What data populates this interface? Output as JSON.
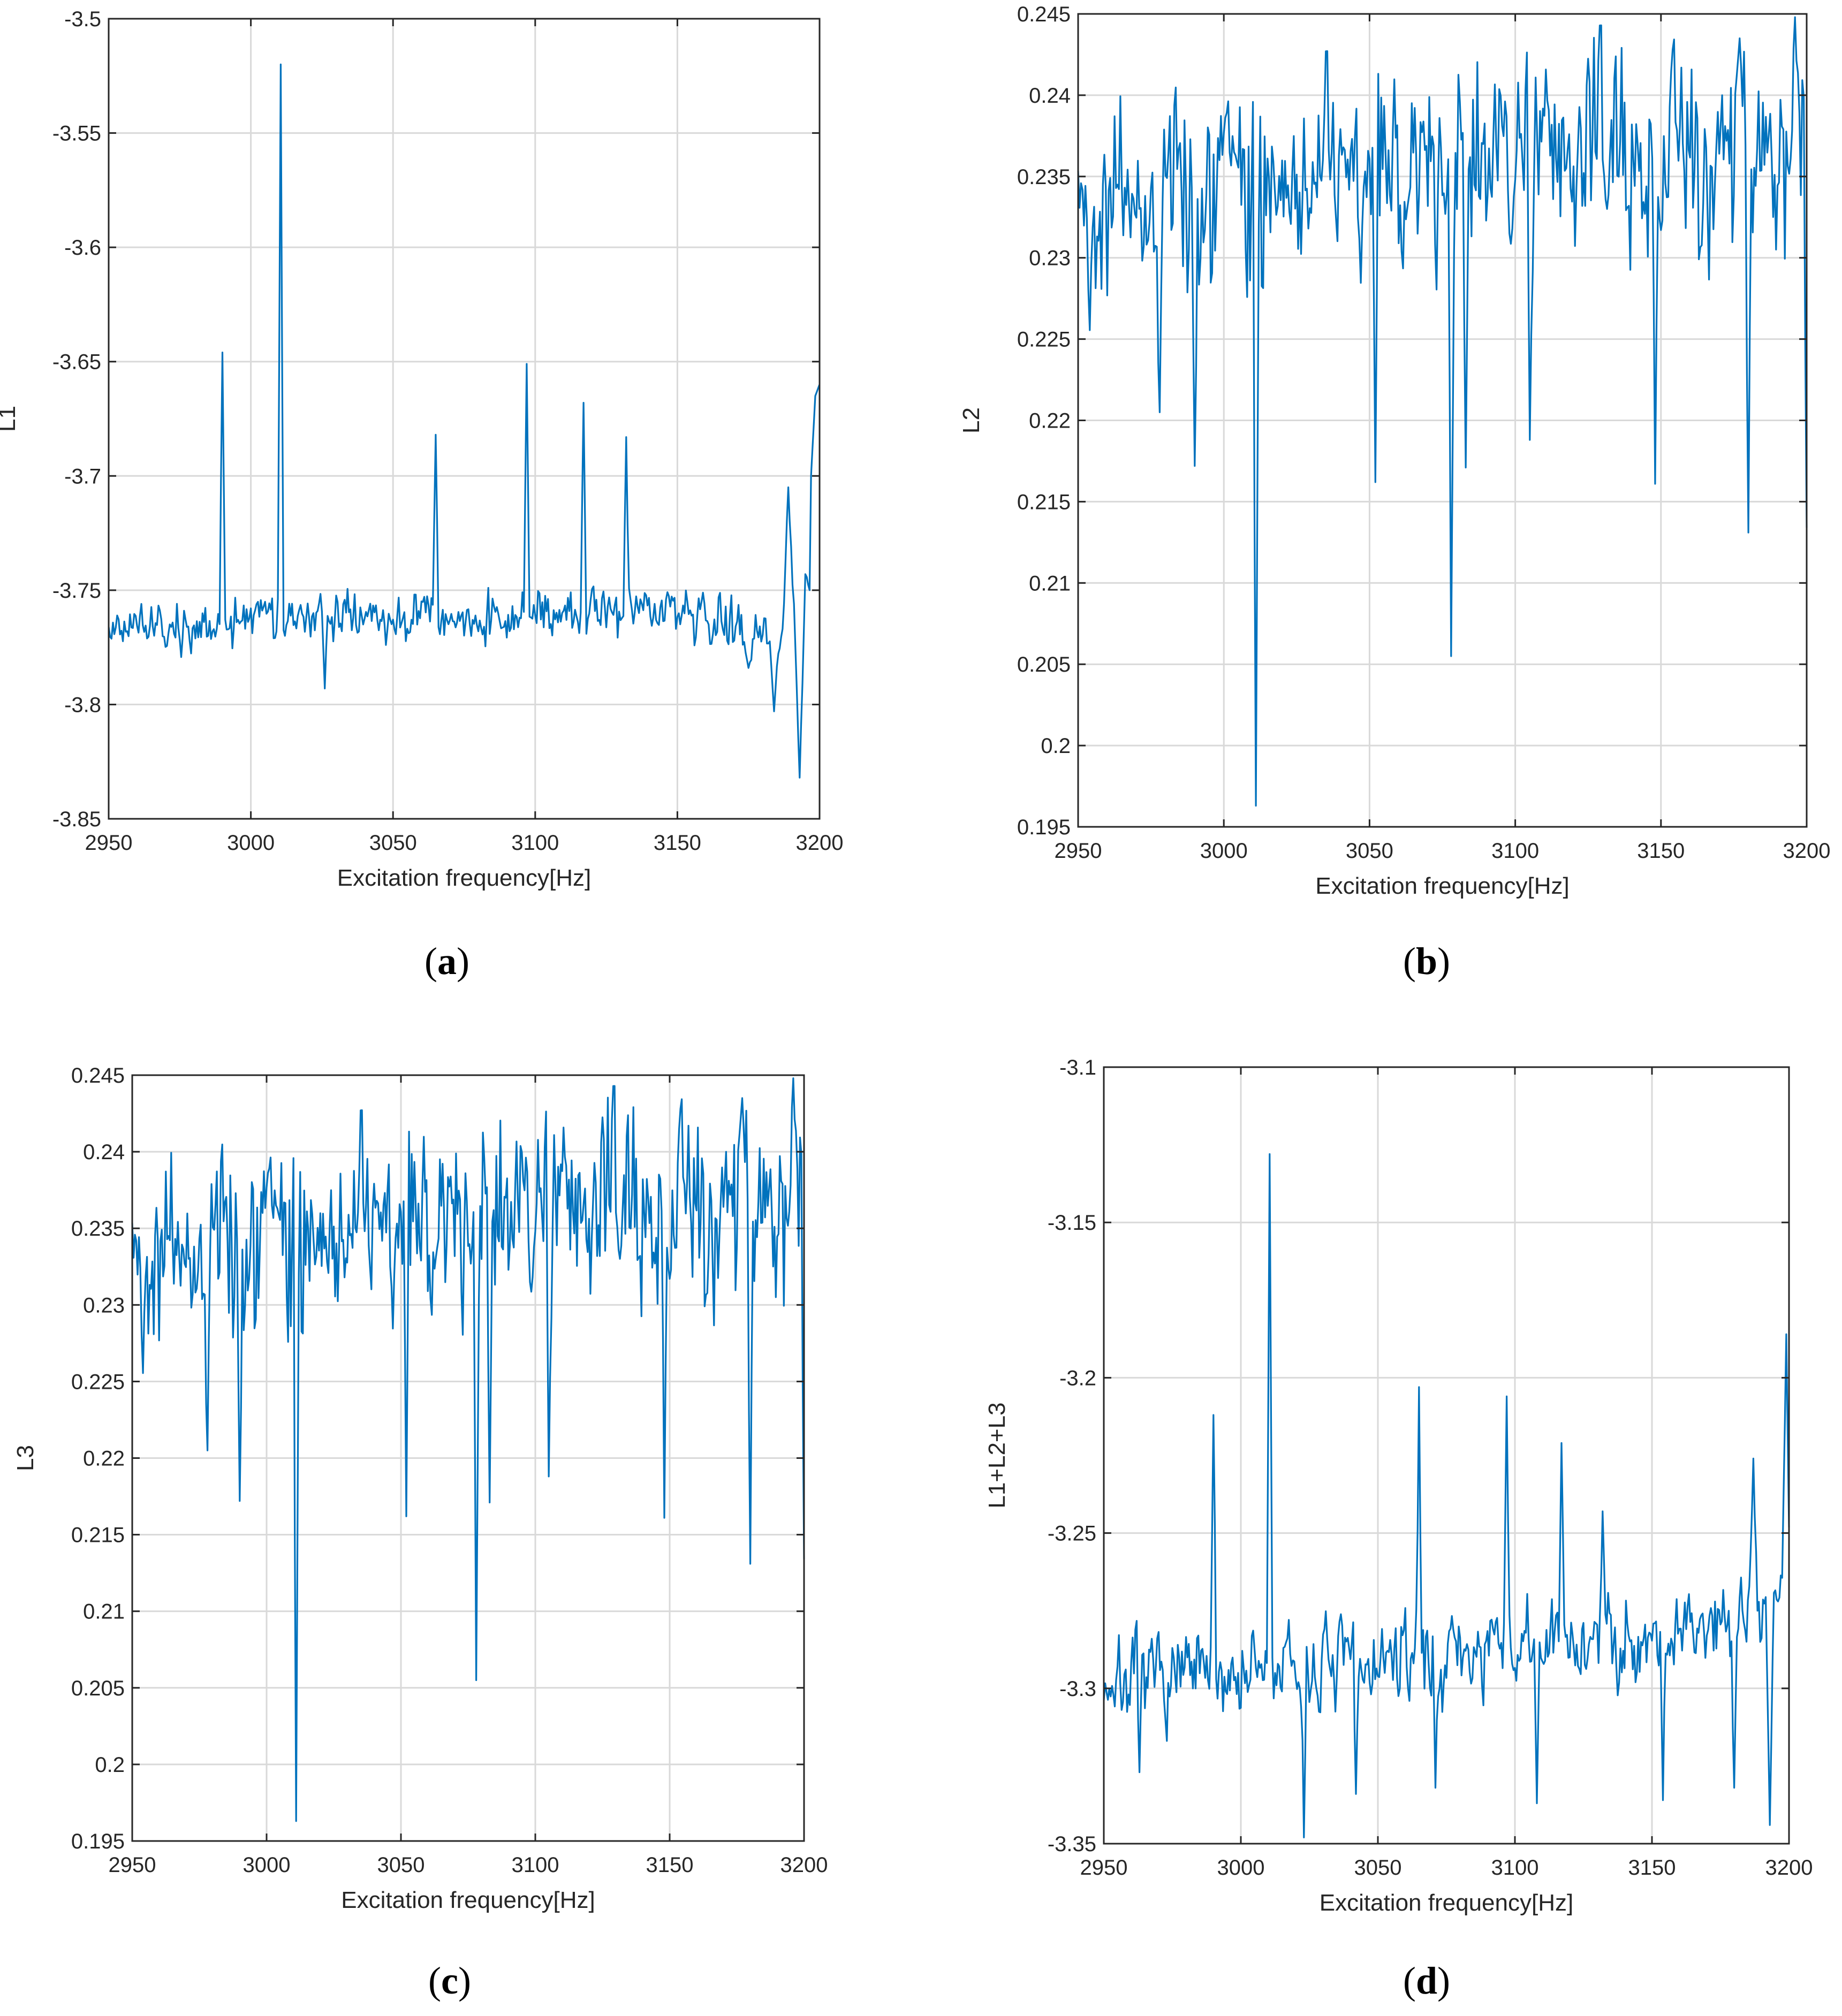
{
  "figure": {
    "line_color": "#0072BD",
    "grid_color": "#d9d9d9",
    "axis_color": "#262626"
  },
  "chart_data": [
    {
      "type": "line",
      "caption_letter": "a",
      "xlabel": "Excitation frequency[Hz]",
      "ylabel": "L1",
      "xlim": [
        2950,
        3200
      ],
      "ylim": [
        -3.85,
        -3.5
      ],
      "xticks": [
        2950,
        3000,
        3050,
        3100,
        3150,
        3200
      ],
      "xtick_labels": [
        "2950",
        "3000",
        "3050",
        "3100",
        "3150",
        "3200"
      ],
      "yticks": [
        -3.85,
        -3.8,
        -3.75,
        -3.7,
        -3.65,
        -3.6,
        -3.55,
        -3.5
      ],
      "ytick_labels": [
        "-3.85",
        "-3.8",
        "-3.75",
        "-3.7",
        "-3.65",
        "-3.6",
        "-3.55",
        "-3.5"
      ],
      "grid": true,
      "x_step": 0.5,
      "signal": {
        "baseline": [
          [
            2950,
            -3.765
          ],
          [
            3060,
            -3.763
          ],
          [
            3120,
            -3.758
          ],
          [
            3150,
            -3.76
          ],
          [
            3170,
            -3.765
          ],
          [
            3185,
            -3.77
          ],
          [
            3200,
            -3.74
          ]
        ],
        "noise": 0.008,
        "noise_max": 0.026,
        "seed": 17,
        "spikes": [
          [
            2990,
            -3.646,
            0.5
          ],
          [
            3010.5,
            -3.52,
            0.5
          ],
          [
            3065,
            -3.682,
            0.6
          ],
          [
            3097,
            -3.651,
            0.5
          ],
          [
            3117,
            -3.668,
            0.5
          ],
          [
            3132,
            -3.683,
            0.5
          ],
          [
            3189,
            -3.705,
            1.5
          ]
        ],
        "dips": [
          [
            3193,
            -3.832,
            1.5
          ],
          [
            3184,
            -3.803,
            1.0
          ],
          [
            3175,
            -3.784,
            2.0
          ],
          [
            3026,
            -3.793,
            0.5
          ]
        ],
        "end": [
          [
            3197,
            -3.7
          ],
          [
            3198.5,
            -3.665
          ],
          [
            3200,
            -3.66
          ]
        ]
      }
    },
    {
      "type": "line",
      "caption_letter": "b",
      "xlabel": "Excitation frequency[Hz]",
      "ylabel": "L2",
      "xlim": [
        2950,
        3200
      ],
      "ylim": [
        0.195,
        0.245
      ],
      "xticks": [
        2950,
        3000,
        3050,
        3100,
        3150,
        3200
      ],
      "xtick_labels": [
        "2950",
        "3000",
        "3050",
        "3100",
        "3150",
        "3200"
      ],
      "yticks": [
        0.195,
        0.2,
        0.205,
        0.21,
        0.215,
        0.22,
        0.225,
        0.23,
        0.235,
        0.24,
        0.245
      ],
      "ytick_labels": [
        "0.195",
        "0.2",
        "0.205",
        "0.21",
        "0.215",
        "0.22",
        "0.225",
        "0.23",
        "0.235",
        "0.24",
        "0.245"
      ],
      "grid": true,
      "x_step": 0.5,
      "signal": {
        "baseline": [
          [
            2950,
            0.233
          ],
          [
            3000,
            0.234
          ],
          [
            3100,
            0.236
          ],
          [
            3200,
            0.237
          ]
        ],
        "noise": 0.0045,
        "noise_max": 0.008,
        "seed": 42,
        "spikes": [
          [
            3196,
            0.2448,
            1.0
          ],
          [
            3154,
            0.2428,
            1.0
          ],
          [
            3177,
            0.2435,
            1.0
          ]
        ],
        "dips": [
          [
            3011,
            0.1963,
            0.5
          ],
          [
            3078,
            0.2055,
            0.5
          ],
          [
            3180,
            0.2131,
            0.5
          ],
          [
            3148,
            0.2161,
            0.5
          ],
          [
            3052,
            0.2162,
            0.5
          ],
          [
            2990,
            0.2172,
            0.5
          ],
          [
            3083,
            0.2171,
            0.5
          ],
          [
            3200,
            0.2134,
            0.5
          ],
          [
            2978,
            0.2205,
            0.5
          ],
          [
            3105,
            0.2188,
            0.5
          ]
        ]
      }
    },
    {
      "type": "line",
      "caption_letter": "c",
      "xlabel": "Excitation frequency[Hz]",
      "ylabel": "L3",
      "xlim": [
        2950,
        3200
      ],
      "ylim": [
        0.195,
        0.245
      ],
      "xticks": [
        2950,
        3000,
        3050,
        3100,
        3150,
        3200
      ],
      "xtick_labels": [
        "2950",
        "3000",
        "3050",
        "3100",
        "3150",
        "3200"
      ],
      "yticks": [
        0.195,
        0.2,
        0.205,
        0.21,
        0.215,
        0.22,
        0.225,
        0.23,
        0.235,
        0.24,
        0.245
      ],
      "ytick_labels": [
        "0.195",
        "0.2",
        "0.205",
        "0.21",
        "0.215",
        "0.22",
        "0.225",
        "0.23",
        "0.235",
        "0.24",
        "0.245"
      ],
      "grid": true,
      "x_step": 0.5,
      "signal": {
        "baseline": [
          [
            2950,
            0.233
          ],
          [
            3000,
            0.234
          ],
          [
            3100,
            0.236
          ],
          [
            3200,
            0.237
          ]
        ],
        "noise": 0.0045,
        "noise_max": 0.008,
        "seed": 42,
        "spikes": [
          [
            3196,
            0.2448,
            1.0
          ],
          [
            3154,
            0.2428,
            1.0
          ],
          [
            3177,
            0.2435,
            1.0
          ]
        ],
        "dips": [
          [
            3011,
            0.1963,
            0.5
          ],
          [
            3078,
            0.2055,
            0.5
          ],
          [
            3180,
            0.2131,
            0.5
          ],
          [
            3148,
            0.2161,
            0.5
          ],
          [
            3052,
            0.2162,
            0.5
          ],
          [
            2990,
            0.2172,
            0.5
          ],
          [
            3083,
            0.2171,
            0.5
          ],
          [
            3200,
            0.2134,
            0.5
          ],
          [
            2978,
            0.2205,
            0.5
          ],
          [
            3105,
            0.2188,
            0.5
          ]
        ]
      }
    },
    {
      "type": "line",
      "caption_letter": "d",
      "xlabel": "Excitation frequency[Hz]",
      "ylabel": "L1+L2+L3",
      "xlim": [
        2950,
        3200
      ],
      "ylim": [
        -3.35,
        -3.1
      ],
      "xticks": [
        2950,
        3000,
        3050,
        3100,
        3150,
        3200
      ],
      "xtick_labels": [
        "2950",
        "3000",
        "3050",
        "3100",
        "3150",
        "3200"
      ],
      "yticks": [
        -3.35,
        -3.3,
        -3.25,
        -3.2,
        -3.15,
        -3.1
      ],
      "ytick_labels": [
        "-3.35",
        "-3.3",
        "-3.25",
        "-3.2",
        "-3.15",
        "-3.1"
      ],
      "grid": true,
      "x_step": 0.5,
      "signal": {
        "baseline": [
          [
            2950,
            -3.298
          ],
          [
            3050,
            -3.292
          ],
          [
            3120,
            -3.285
          ],
          [
            3160,
            -3.282
          ],
          [
            3200,
            -3.27
          ]
        ],
        "noise": 0.01,
        "noise_max": 0.03,
        "seed": 7,
        "spikes": [
          [
            2990,
            -3.212,
            0.5
          ],
          [
            3010.5,
            -3.128,
            0.5
          ],
          [
            3065,
            -3.203,
            0.5
          ],
          [
            3097,
            -3.206,
            0.5
          ],
          [
            3117,
            -3.221,
            0.5
          ],
          [
            3132,
            -3.243,
            0.5
          ],
          [
            3187,
            -3.226,
            1.0
          ],
          [
            3199,
            -3.186,
            1.0
          ]
        ],
        "dips": [
          [
            3023,
            -3.348,
            0.5
          ],
          [
            3193,
            -3.344,
            1.0
          ],
          [
            3108,
            -3.337,
            0.5
          ],
          [
            3154,
            -3.336,
            0.5
          ],
          [
            3042,
            -3.334,
            0.5
          ],
          [
            3071,
            -3.332,
            0.5
          ],
          [
            3180,
            -3.332,
            0.5
          ],
          [
            2963,
            -3.327,
            0.5
          ]
        ]
      }
    }
  ]
}
